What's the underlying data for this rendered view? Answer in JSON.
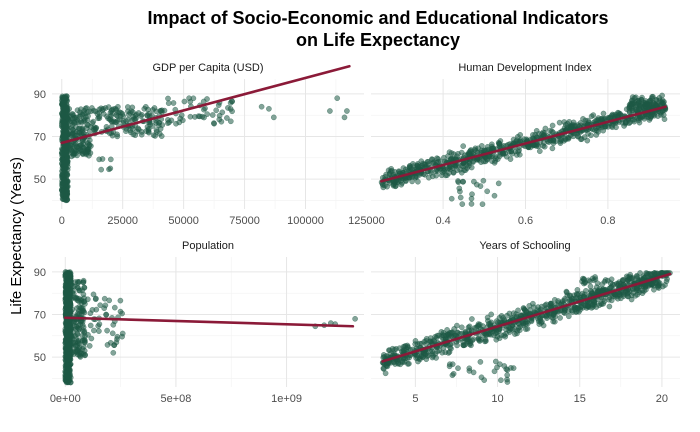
{
  "chart_data": {
    "type": "scatter",
    "title": "Impact of Socio-Economic and Educational Indicators",
    "title_line2": "on Life Expectancy",
    "ylabel": "Life Expectancy (Years)",
    "ylim": [
      36,
      97
    ],
    "yticks": [
      50,
      70,
      90
    ],
    "point_color": "#1e5945",
    "line_color": "#8b1a38",
    "panels": [
      {
        "name": "GDP per Capita (USD)",
        "xlim": [
          -4000,
          124000
        ],
        "xticks": [
          0,
          25000,
          50000,
          75000,
          100000,
          125000
        ],
        "xtick_labels": [
          "0",
          "25000",
          "50000",
          "75000",
          "100000",
          "125000"
        ],
        "fit": {
          "x": [
            0,
            118000
          ],
          "y": [
            67,
            103
          ]
        },
        "clusters": [
          {
            "x": [
              0,
              2500
            ],
            "y": [
              40,
              89
            ],
            "n": 350
          },
          {
            "x": [
              0,
              12000
            ],
            "y": [
              60,
              84
            ],
            "n": 180
          },
          {
            "x": [
              12000,
              42000
            ],
            "y": [
              70,
              84
            ],
            "n": 150
          },
          {
            "x": [
              42000,
              70000
            ],
            "y": [
              76,
              88
            ],
            "n": 50
          },
          {
            "x": [
              15000,
              22000
            ],
            "y": [
              54,
              62
            ],
            "n": 6
          }
        ],
        "extra_points": [
          {
            "x": 85000,
            "y": 83
          },
          {
            "x": 87000,
            "y": 79
          },
          {
            "x": 82000,
            "y": 84
          },
          {
            "x": 110000,
            "y": 82
          },
          {
            "x": 113000,
            "y": 88
          },
          {
            "x": 117000,
            "y": 82
          },
          {
            "x": 116000,
            "y": 79
          }
        ]
      },
      {
        "name": "Human Development Index",
        "xlim": [
          0.225,
          0.975
        ],
        "xticks": [
          0.4,
          0.6,
          0.8
        ],
        "xtick_labels": [
          "0.4",
          "0.6",
          "0.8"
        ],
        "fit": {
          "x": [
            0.25,
            0.94
          ],
          "y": [
            49,
            84
          ]
        },
        "band": {
          "x": [
            0.25,
            0.94
          ],
          "n": 750,
          "spread": 7
        },
        "clusters": [
          {
            "x": [
              0.85,
              0.94
            ],
            "y": [
              83,
              89
            ],
            "n": 70
          },
          {
            "x": [
              0.42,
              0.55
            ],
            "y": [
              38,
              50
            ],
            "n": 20
          }
        ],
        "extra_points": []
      },
      {
        "name": "Population",
        "xlim": [
          -60000000.0,
          1350000000.0
        ],
        "xticks": [
          0,
          500000000,
          1000000000
        ],
        "xtick_labels": [
          "0e+00",
          "5e+08",
          "1e+09"
        ],
        "fit": {
          "x": [
            0,
            1300000000
          ],
          "y": [
            68.5,
            64.5
          ]
        },
        "clusters": [
          {
            "x": [
              0,
              25000000
            ],
            "y": [
              38,
              90
            ],
            "n": 550
          },
          {
            "x": [
              25000000,
              90000000
            ],
            "y": [
              50,
              86
            ],
            "n": 140
          },
          {
            "x": [
              100000000,
              260000000
            ],
            "y": [
              52,
              80
            ],
            "n": 45
          }
        ],
        "extra_points": [
          {
            "x": 1130000000,
            "y": 64.5
          },
          {
            "x": 1170000000,
            "y": 65
          },
          {
            "x": 1200000000,
            "y": 66
          },
          {
            "x": 1220000000,
            "y": 65.5
          },
          {
            "x": 1310000000,
            "y": 68
          }
        ]
      },
      {
        "name": "Years of Schooling",
        "xlim": [
          2.3,
          21.1
        ],
        "xticks": [
          5,
          10,
          15,
          20
        ],
        "xtick_labels": [
          "5",
          "10",
          "15",
          "20"
        ],
        "fit": {
          "x": [
            3,
            20.5
          ],
          "y": [
            48,
            89
          ]
        },
        "band": {
          "x": [
            3,
            20.5
          ],
          "n": 850,
          "spread": 8
        },
        "clusters": [
          {
            "x": [
              7,
              11
            ],
            "y": [
              38,
              48
            ],
            "n": 25
          },
          {
            "x": [
              15,
              20
            ],
            "y": [
              84,
              88
            ],
            "n": 40
          }
        ],
        "extra_points": []
      }
    ]
  }
}
